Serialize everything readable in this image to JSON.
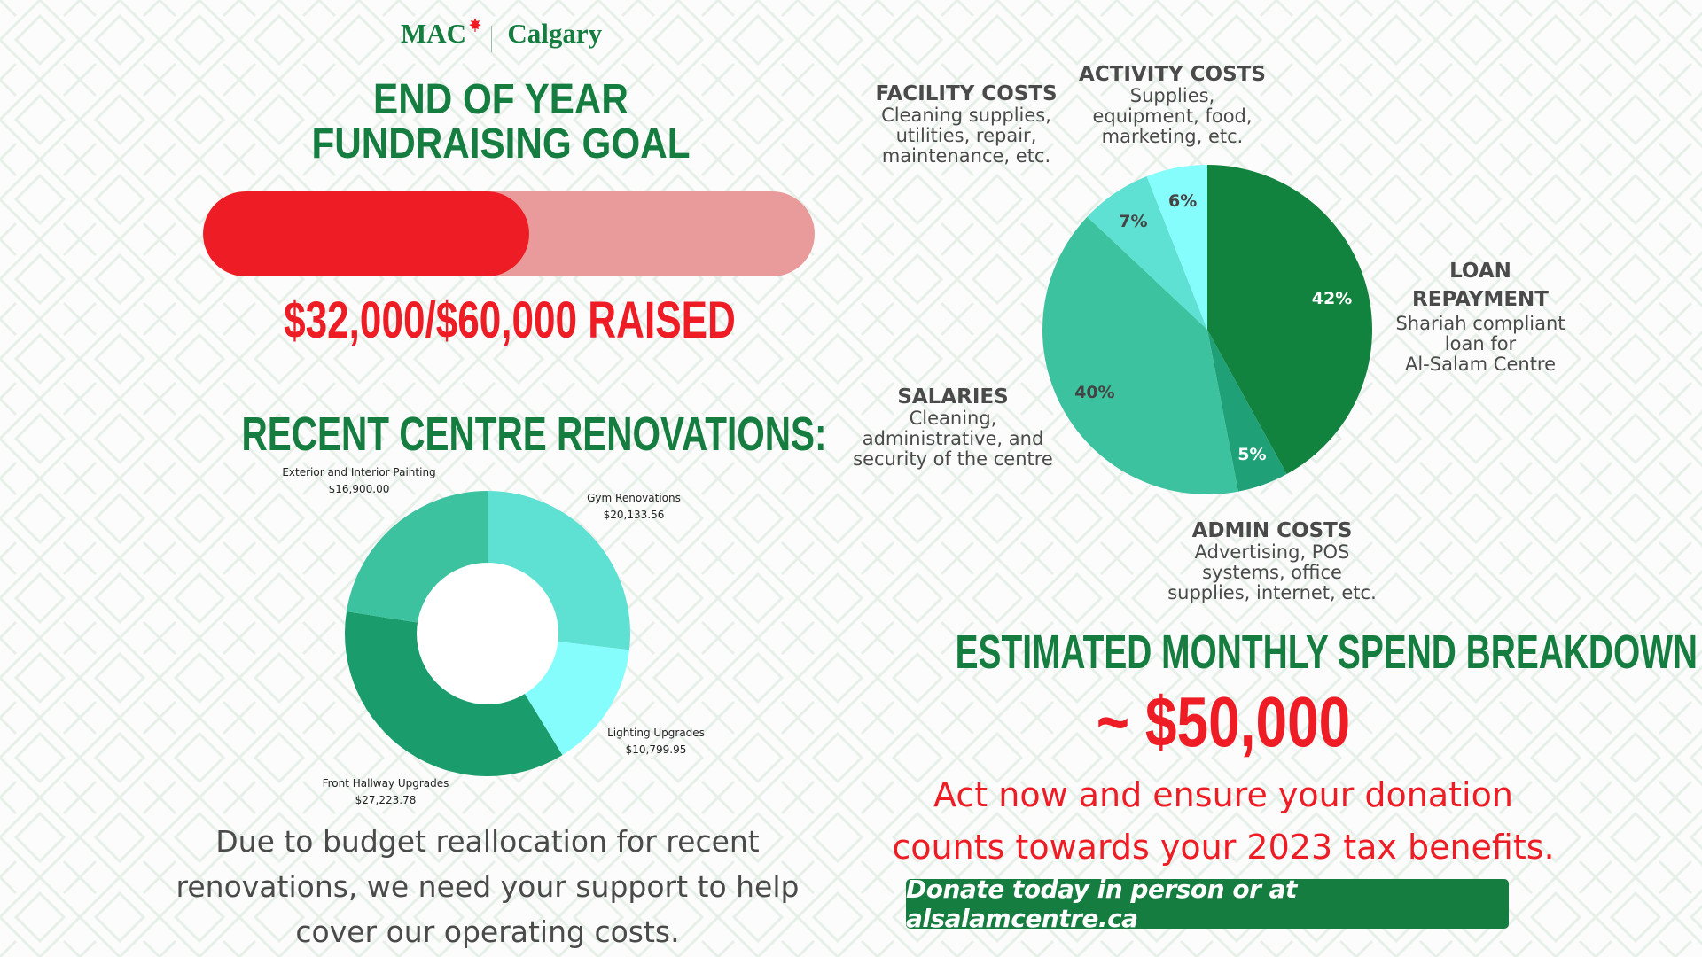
{
  "brand": {
    "name_left": "MAC",
    "name_right": "Calgary"
  },
  "goal": {
    "title_line1": "END OF YEAR",
    "title_line2": "FUNDRAISING GOAL",
    "raised": 32000,
    "target": 60000,
    "raised_text": "$32,000/$60,000 RAISED"
  },
  "renovations": {
    "title": "RECENT CENTRE RENOVATIONS:"
  },
  "spend": {
    "title": "ESTIMATED MONTHLY SPEND BREAKDOWN",
    "amount": "~ $50,000",
    "cta_line1": "Act now and ensure your donation",
    "cta_line2": "counts towards your 2023 tax benefits.",
    "donate_label": "Donate today in person or at alsalamcentre.ca"
  },
  "footer_text": {
    "line1": "Due to budget reallocation for recent",
    "line2": "renovations, we need your support to help",
    "line3": "cover our operating costs."
  },
  "colors": {
    "green": "#157d3f",
    "red": "#ee1c25",
    "bar_fill": "#ee1c25",
    "bar_track": "#e99a9a"
  },
  "chart_data": [
    {
      "type": "pie",
      "title": "Recent Centre Renovations",
      "donut": true,
      "categories": [
        "Gym Renovations",
        "Lighting Upgrades",
        "Front Hallway Upgrades",
        "Exterior and Interior Painting"
      ],
      "values": [
        20133.56,
        10799.95,
        27223.78,
        16900.0
      ],
      "value_labels": [
        "$20,133.56",
        "$10,799.95",
        "$27,223.78",
        "$16,900.00"
      ],
      "colors": [
        "#5ee0d2",
        "#86fdfd",
        "#1b9c6c",
        "#3cc29e"
      ]
    },
    {
      "type": "pie",
      "title": "Estimated Monthly Spend Breakdown",
      "categories": [
        "Loan Repayment",
        "Admin Costs",
        "Salaries",
        "Facility Costs",
        "Activity Costs"
      ],
      "values": [
        42,
        5,
        40,
        7,
        6
      ],
      "value_labels": [
        "42%",
        "5%",
        "40%",
        "7%",
        "6%"
      ],
      "descriptions": [
        [
          "LOAN",
          "REPAYMENT",
          "Shariah compliant",
          "loan for",
          "Al-Salam Centre"
        ],
        [
          "ADMIN COSTS",
          "Advertising, POS",
          "systems, office",
          "supplies, internet, etc."
        ],
        [
          "SALARIES",
          "Cleaning,",
          "administrative, and",
          "security of the centre"
        ],
        [
          "FACILITY COSTS",
          "Cleaning supplies,",
          "utilities, repair,",
          "maintenance, etc."
        ],
        [
          "ACTIVITY COSTS",
          "Supplies,",
          "equipment, food,",
          "marketing, etc."
        ]
      ],
      "colors": [
        "#12823f",
        "#20a077",
        "#3cc29e",
        "#5ee0d2",
        "#86fdfd"
      ],
      "label_colors": [
        "#ffffff",
        "#ffffff",
        "#444444",
        "#444444",
        "#444444"
      ]
    }
  ]
}
